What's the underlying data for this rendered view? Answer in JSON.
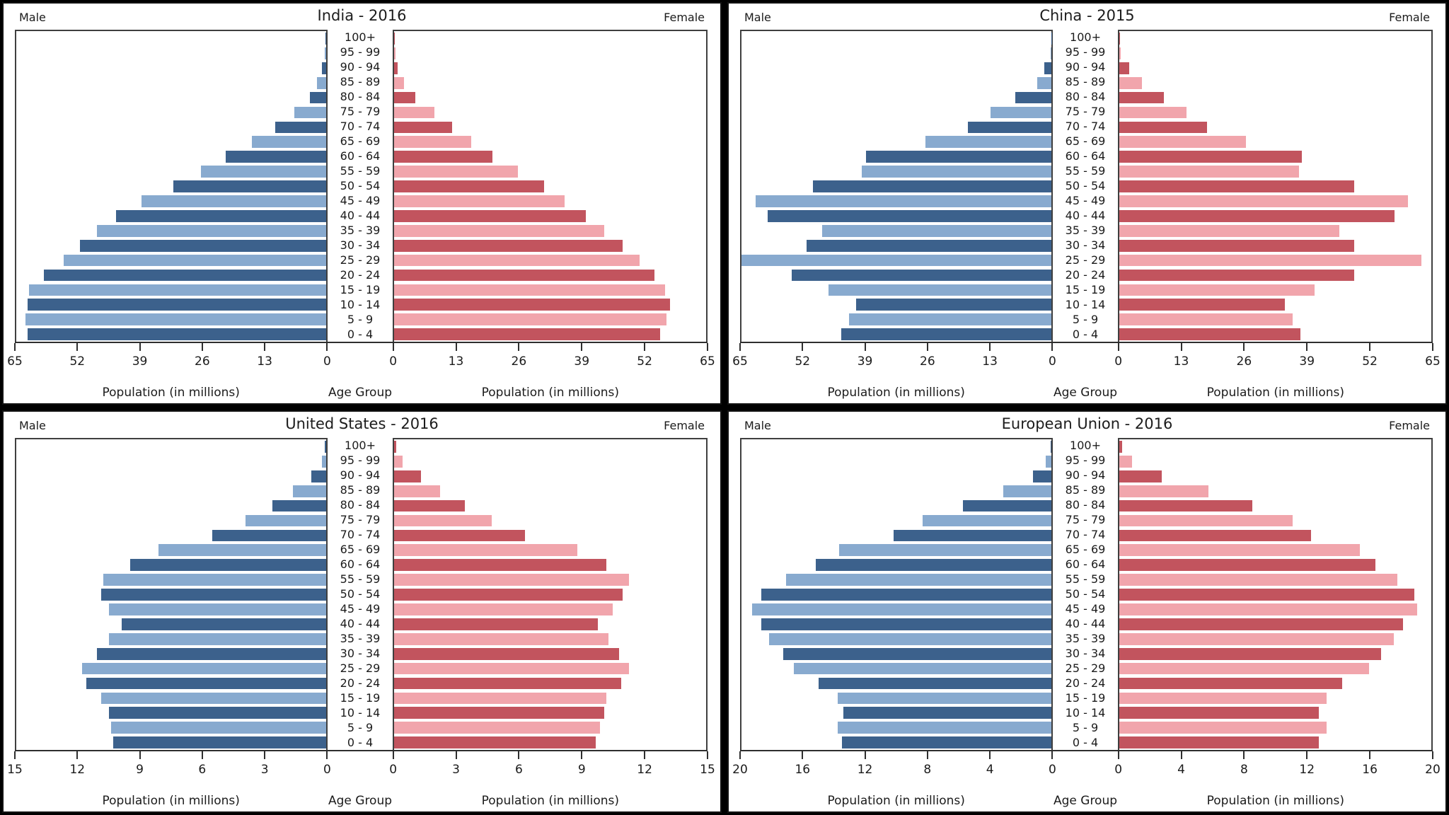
{
  "labels": {
    "male": "Male",
    "female": "Female",
    "age_axis": "Age Group",
    "population_axis": "Population (in millions)"
  },
  "age_groups": [
    "100+",
    "95 - 99",
    "90 - 94",
    "85 - 89",
    "80 - 84",
    "75 - 79",
    "70 - 74",
    "65 - 69",
    "60 - 64",
    "55 - 59",
    "50 - 54",
    "45 - 49",
    "40 - 44",
    "35 - 39",
    "30 - 34",
    "25 - 29",
    "20 - 24",
    "15 - 19",
    "10 - 14",
    "5 - 9",
    "0 - 4"
  ],
  "colors": {
    "male_dark": "#3c618c",
    "male_light": "#88aacf",
    "female_dark": "#c2545e",
    "female_light": "#f1a5ac",
    "frame": "#3f3f3f",
    "axis_text": "#1b1b1b",
    "background": "#ffffff"
  },
  "chart_data": [
    {
      "type": "bar",
      "subtype": "population_pyramid",
      "title": "India - 2016",
      "unit": "millions",
      "xlim": [
        0,
        65
      ],
      "ticks": [
        0,
        13,
        26,
        39,
        52,
        65
      ],
      "categories_note": "values aligned to age_groups, oldest (100+) first",
      "series": [
        {
          "name": "Male",
          "values": [
            0.05,
            0.3,
            0.9,
            1.9,
            3.4,
            6.6,
            10.7,
            15.5,
            21.0,
            26.2,
            32.0,
            38.7,
            44.0,
            48.1,
            51.7,
            55.1,
            59.2,
            62.4,
            62.6,
            63.0,
            62.6
          ]
        },
        {
          "name": "Female",
          "values": [
            0.05,
            0.3,
            0.7,
            2.1,
            4.4,
            8.3,
            12.0,
            16.1,
            20.5,
            25.7,
            31.2,
            35.5,
            40.0,
            43.8,
            47.6,
            51.2,
            54.2,
            56.5,
            57.5,
            56.8,
            55.4
          ]
        }
      ]
    },
    {
      "type": "bar",
      "subtype": "population_pyramid",
      "title": "China - 2015",
      "unit": "millions",
      "xlim": [
        0,
        65
      ],
      "ticks": [
        0,
        13,
        26,
        39,
        52,
        65
      ],
      "categories_note": "values aligned to age_groups, oldest (100+) first; 25-29 male clipped at axis max",
      "series": [
        {
          "name": "Male",
          "values": [
            0.03,
            0.15,
            1.4,
            3.0,
            7.6,
            12.8,
            17.5,
            26.4,
            38.8,
            39.7,
            50.0,
            62.0,
            59.5,
            48.1,
            51.4,
            65.0,
            54.4,
            46.8,
            40.9,
            42.4,
            44.0
          ]
        },
        {
          "name": "Female",
          "values": [
            0.05,
            0.3,
            2.1,
            4.7,
            9.3,
            14.0,
            18.2,
            26.4,
            38.0,
            37.4,
            48.9,
            60.2,
            57.4,
            45.9,
            49.0,
            63.0,
            49.0,
            40.6,
            34.5,
            36.1,
            37.7
          ]
        }
      ]
    },
    {
      "type": "bar",
      "subtype": "population_pyramid",
      "title": "United States - 2016",
      "unit": "millions",
      "xlim": [
        0,
        15
      ],
      "ticks": [
        0,
        3,
        6,
        9,
        12,
        15
      ],
      "categories_note": "values aligned to age_groups, oldest (100+) first",
      "series": [
        {
          "name": "Male",
          "values": [
            0.05,
            0.2,
            0.7,
            1.6,
            2.6,
            3.9,
            5.5,
            8.1,
            9.5,
            10.8,
            10.9,
            10.5,
            9.9,
            10.5,
            11.1,
            11.8,
            11.6,
            10.9,
            10.5,
            10.4,
            10.3
          ]
        },
        {
          "name": "Female",
          "values": [
            0.1,
            0.4,
            1.3,
            2.2,
            3.4,
            4.7,
            6.3,
            8.8,
            10.2,
            11.3,
            11.0,
            10.5,
            9.8,
            10.3,
            10.8,
            11.3,
            10.9,
            10.2,
            10.1,
            9.9,
            9.7
          ]
        }
      ]
    },
    {
      "type": "bar",
      "subtype": "population_pyramid",
      "title": "European Union - 2016",
      "unit": "millions",
      "xlim": [
        0,
        20
      ],
      "ticks": [
        0,
        4,
        8,
        12,
        16,
        20
      ],
      "categories_note": "values aligned to age_groups, oldest (100+) first",
      "series": [
        {
          "name": "Male",
          "values": [
            0.03,
            0.35,
            1.2,
            3.1,
            5.7,
            8.3,
            10.2,
            13.7,
            15.2,
            17.1,
            18.7,
            19.3,
            18.7,
            18.2,
            17.3,
            16.6,
            15.0,
            13.8,
            13.4,
            13.8,
            13.5
          ]
        },
        {
          "name": "Female",
          "values": [
            0.15,
            0.8,
            2.7,
            5.7,
            8.5,
            11.1,
            12.3,
            15.4,
            16.4,
            17.8,
            18.9,
            19.1,
            18.2,
            17.6,
            16.8,
            16.0,
            14.3,
            13.3,
            12.8,
            13.3,
            12.8
          ]
        }
      ]
    }
  ]
}
